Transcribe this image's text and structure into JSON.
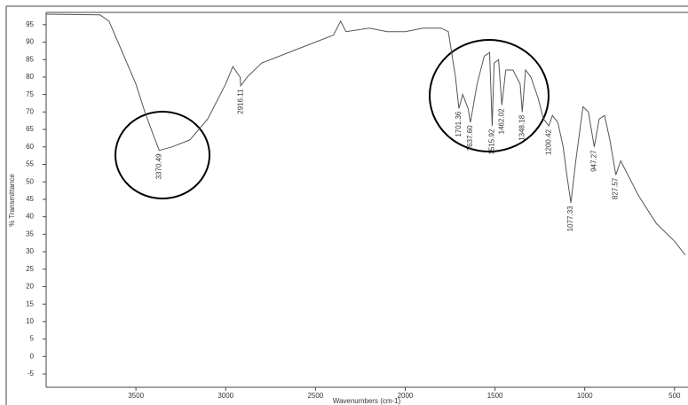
{
  "chart_data": {
    "type": "line",
    "ylabel": "% Transmittance",
    "xlabel": "Wavenumbers (cm-1)",
    "x": [
      4000,
      3700,
      3650,
      3600,
      3500,
      3450,
      3400,
      3370,
      3300,
      3200,
      3100,
      3000,
      2960,
      2920,
      2916,
      2880,
      2800,
      2600,
      2400,
      2360,
      2330,
      2200,
      2100,
      2000,
      1900,
      1800,
      1760,
      1720,
      1701,
      1680,
      1650,
      1637,
      1600,
      1560,
      1530,
      1516,
      1505,
      1480,
      1462,
      1440,
      1400,
      1360,
      1348,
      1330,
      1300,
      1260,
      1230,
      1200,
      1180,
      1150,
      1120,
      1100,
      1077,
      1050,
      1010,
      980,
      947,
      920,
      890,
      860,
      827,
      800,
      700,
      600,
      500,
      440
    ],
    "y": [
      98,
      97.8,
      96,
      90,
      78,
      70,
      63,
      59,
      60,
      62,
      68,
      78,
      83,
      80,
      77.5,
      80,
      84,
      88,
      92,
      96,
      93,
      94,
      93,
      93,
      94,
      94,
      93,
      80,
      71,
      75,
      71,
      67,
      78,
      86,
      87,
      66,
      84,
      85,
      72,
      82,
      82,
      78,
      70,
      82,
      80,
      74,
      68,
      66,
      69,
      67,
      60,
      52,
      44,
      56,
      71.5,
      70,
      60,
      68,
      69,
      62,
      52,
      56,
      46,
      38,
      33,
      29
    ],
    "color": "#555555",
    "peaks": [
      3370.49,
      2916.11,
      1701.36,
      1637.6,
      1515.92,
      1462.02,
      1348.18,
      1200.42,
      1077.33,
      947.27,
      827.57
    ],
    "xlim": [
      4000,
      425
    ],
    "ylim": [
      -8.8,
      98.5
    ],
    "xticks": [
      3500,
      3000,
      2500,
      2000,
      1500,
      1000,
      500
    ],
    "yticks": [
      -5,
      0,
      5,
      10,
      15,
      20,
      25,
      30,
      35,
      40,
      45,
      50,
      55,
      60,
      65,
      70,
      75,
      80,
      85,
      90,
      95
    ]
  }
}
